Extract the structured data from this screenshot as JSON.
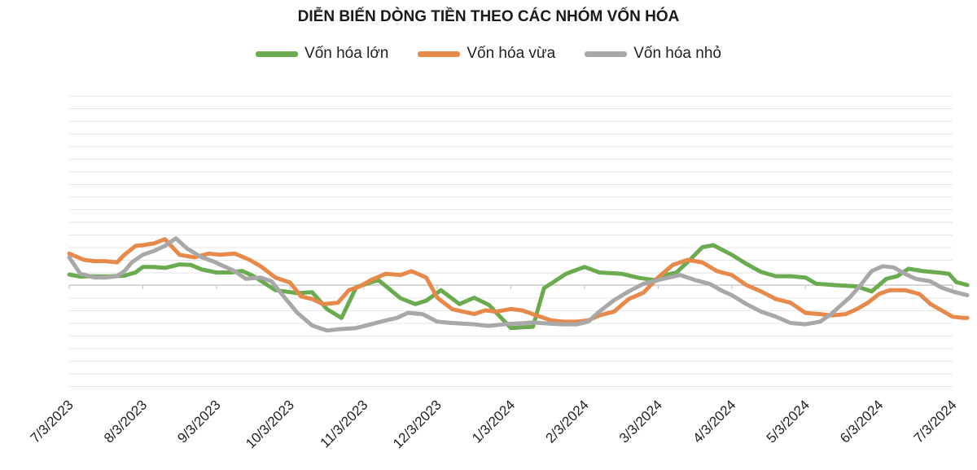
{
  "chart_data": {
    "type": "line",
    "title": "DIỄN BIẾN DÒNG TIỀN THEO CÁC NHÓM VỐN HÓA",
    "xlabel": "",
    "ylabel": "",
    "categories": [
      "7/3/2023",
      "8/3/2023",
      "9/3/2023",
      "10/3/2023",
      "11/3/2023",
      "12/3/2023",
      "1/3/2024",
      "2/3/2024",
      "3/3/2024",
      "4/3/2024",
      "5/3/2024",
      "6/3/2024",
      "7/3/2024"
    ],
    "legend_position": "top-center",
    "grid": true,
    "series": [
      {
        "name": "Vốn hóa lớn",
        "color": "#6aab4f",
        "values": [
          [
            0,
            0.42
          ],
          [
            0.15,
            0.34
          ],
          [
            0.3,
            0.35
          ],
          [
            0.5,
            0.34
          ],
          [
            0.75,
            0.37
          ],
          [
            0.9,
            0.5
          ],
          [
            1.0,
            0.72
          ],
          [
            1.15,
            0.72
          ],
          [
            1.3,
            0.68
          ],
          [
            1.5,
            0.82
          ],
          [
            1.65,
            0.8
          ],
          [
            1.8,
            0.62
          ],
          [
            2.0,
            0.5
          ],
          [
            2.2,
            0.5
          ],
          [
            2.35,
            0.56
          ],
          [
            2.5,
            0.36
          ],
          [
            2.8,
            -0.2
          ],
          [
            3.1,
            -0.32
          ],
          [
            3.3,
            -0.28
          ],
          [
            3.5,
            -0.95
          ],
          [
            3.7,
            -1.3
          ],
          [
            3.9,
            -0.08
          ],
          [
            4.2,
            0.2
          ],
          [
            4.5,
            -0.52
          ],
          [
            4.7,
            -0.75
          ],
          [
            4.85,
            -0.62
          ],
          [
            5.05,
            -0.2
          ],
          [
            5.3,
            -0.75
          ],
          [
            5.5,
            -0.5
          ],
          [
            5.7,
            -0.78
          ],
          [
            6.0,
            -1.7
          ],
          [
            6.3,
            -1.65
          ],
          [
            6.45,
            -0.12
          ],
          [
            6.6,
            0.16
          ],
          [
            6.75,
            0.45
          ],
          [
            7.0,
            0.72
          ],
          [
            7.2,
            0.5
          ],
          [
            7.5,
            0.45
          ],
          [
            7.75,
            0.28
          ],
          [
            7.95,
            0.2
          ],
          [
            8.1,
            0.4
          ],
          [
            8.25,
            0.5
          ],
          [
            8.45,
            1.05
          ],
          [
            8.6,
            1.5
          ],
          [
            8.75,
            1.58
          ],
          [
            9.0,
            1.2
          ],
          [
            9.2,
            0.84
          ],
          [
            9.4,
            0.52
          ],
          [
            9.6,
            0.35
          ],
          [
            9.8,
            0.35
          ],
          [
            10.0,
            0.3
          ],
          [
            10.15,
            0.05
          ],
          [
            10.4,
            0.0
          ],
          [
            10.7,
            -0.05
          ],
          [
            10.9,
            -0.25
          ],
          [
            11.1,
            0.25
          ],
          [
            11.25,
            0.35
          ],
          [
            11.4,
            0.65
          ],
          [
            11.6,
            0.55
          ],
          [
            11.8,
            0.5
          ],
          [
            11.95,
            0.45
          ],
          [
            12.05,
            0.12
          ],
          [
            12.2,
            0.0
          ]
        ]
      },
      {
        "name": "Vốn hóa vừa",
        "color": "#e6894a",
        "values": [
          [
            0,
            1.25
          ],
          [
            0.2,
            1.0
          ],
          [
            0.35,
            0.95
          ],
          [
            0.5,
            0.95
          ],
          [
            0.65,
            0.9
          ],
          [
            0.75,
            1.2
          ],
          [
            0.9,
            1.55
          ],
          [
            1.0,
            1.58
          ],
          [
            1.15,
            1.65
          ],
          [
            1.3,
            1.82
          ],
          [
            1.5,
            1.2
          ],
          [
            1.7,
            1.1
          ],
          [
            1.9,
            1.25
          ],
          [
            2.05,
            1.2
          ],
          [
            2.25,
            1.25
          ],
          [
            2.45,
            1.0
          ],
          [
            2.6,
            0.75
          ],
          [
            2.8,
            0.3
          ],
          [
            3.0,
            0.1
          ],
          [
            3.15,
            -0.45
          ],
          [
            3.3,
            -0.55
          ],
          [
            3.45,
            -0.75
          ],
          [
            3.65,
            -0.7
          ],
          [
            3.8,
            -0.2
          ],
          [
            3.95,
            -0.05
          ],
          [
            4.1,
            0.2
          ],
          [
            4.3,
            0.45
          ],
          [
            4.5,
            0.4
          ],
          [
            4.65,
            0.55
          ],
          [
            4.85,
            0.3
          ],
          [
            5.0,
            -0.5
          ],
          [
            5.2,
            -0.95
          ],
          [
            5.5,
            -1.15
          ],
          [
            5.65,
            -1.0
          ],
          [
            5.8,
            -1.05
          ],
          [
            6.0,
            -0.95
          ],
          [
            6.15,
            -1.0
          ],
          [
            6.35,
            -1.2
          ],
          [
            6.55,
            -1.4
          ],
          [
            6.7,
            -1.45
          ],
          [
            6.9,
            -1.45
          ],
          [
            7.05,
            -1.4
          ],
          [
            7.2,
            -1.2
          ],
          [
            7.4,
            -1.05
          ],
          [
            7.6,
            -0.55
          ],
          [
            7.8,
            -0.3
          ],
          [
            8.0,
            0.3
          ],
          [
            8.2,
            0.8
          ],
          [
            8.4,
            1.0
          ],
          [
            8.6,
            0.9
          ],
          [
            8.8,
            0.55
          ],
          [
            9.0,
            0.4
          ],
          [
            9.2,
            0.0
          ],
          [
            9.4,
            -0.25
          ],
          [
            9.6,
            -0.55
          ],
          [
            9.8,
            -0.7
          ],
          [
            10.0,
            -1.1
          ],
          [
            10.2,
            -1.15
          ],
          [
            10.35,
            -1.2
          ],
          [
            10.55,
            -1.15
          ],
          [
            10.7,
            -0.95
          ],
          [
            10.85,
            -0.7
          ],
          [
            11.0,
            -0.35
          ],
          [
            11.15,
            -0.2
          ],
          [
            11.35,
            -0.2
          ],
          [
            11.55,
            -0.35
          ],
          [
            11.7,
            -0.75
          ],
          [
            11.85,
            -1.0
          ],
          [
            12.0,
            -1.25
          ],
          [
            12.15,
            -1.3
          ],
          [
            12.2,
            -1.3
          ]
        ]
      },
      {
        "name": "Vốn hóa nhỏ",
        "color": "#a8a8a8",
        "values": [
          [
            0,
            1.1
          ],
          [
            0.15,
            0.45
          ],
          [
            0.35,
            0.3
          ],
          [
            0.5,
            0.3
          ],
          [
            0.65,
            0.35
          ],
          [
            0.75,
            0.55
          ],
          [
            0.85,
            0.9
          ],
          [
            1.0,
            1.2
          ],
          [
            1.15,
            1.35
          ],
          [
            1.3,
            1.55
          ],
          [
            1.45,
            1.85
          ],
          [
            1.6,
            1.45
          ],
          [
            1.8,
            1.1
          ],
          [
            1.95,
            0.95
          ],
          [
            2.1,
            0.75
          ],
          [
            2.25,
            0.55
          ],
          [
            2.4,
            0.25
          ],
          [
            2.6,
            0.3
          ],
          [
            2.75,
            0.15
          ],
          [
            2.9,
            -0.4
          ],
          [
            3.1,
            -1.1
          ],
          [
            3.3,
            -1.6
          ],
          [
            3.5,
            -1.8
          ],
          [
            3.65,
            -1.75
          ],
          [
            3.9,
            -1.7
          ],
          [
            4.1,
            -1.55
          ],
          [
            4.3,
            -1.4
          ],
          [
            4.45,
            -1.3
          ],
          [
            4.6,
            -1.1
          ],
          [
            4.8,
            -1.15
          ],
          [
            5.0,
            -1.45
          ],
          [
            5.2,
            -1.5
          ],
          [
            5.5,
            -1.55
          ],
          [
            5.7,
            -1.62
          ],
          [
            5.9,
            -1.55
          ],
          [
            6.1,
            -1.52
          ],
          [
            6.3,
            -1.48
          ],
          [
            6.5,
            -1.52
          ],
          [
            6.7,
            -1.55
          ],
          [
            6.9,
            -1.55
          ],
          [
            7.05,
            -1.45
          ],
          [
            7.2,
            -1.05
          ],
          [
            7.4,
            -0.6
          ],
          [
            7.6,
            -0.25
          ],
          [
            7.8,
            0.05
          ],
          [
            8.0,
            0.2
          ],
          [
            8.15,
            0.3
          ],
          [
            8.3,
            0.4
          ],
          [
            8.5,
            0.2
          ],
          [
            8.7,
            0.05
          ],
          [
            8.85,
            -0.2
          ],
          [
            9.0,
            -0.4
          ],
          [
            9.2,
            -0.75
          ],
          [
            9.4,
            -1.05
          ],
          [
            9.6,
            -1.25
          ],
          [
            9.8,
            -1.5
          ],
          [
            10.0,
            -1.55
          ],
          [
            10.2,
            -1.45
          ],
          [
            10.35,
            -1.15
          ],
          [
            10.5,
            -0.75
          ],
          [
            10.6,
            -0.5
          ],
          [
            10.75,
            0.0
          ],
          [
            10.9,
            0.55
          ],
          [
            11.05,
            0.75
          ],
          [
            11.2,
            0.7
          ],
          [
            11.35,
            0.45
          ],
          [
            11.5,
            0.25
          ],
          [
            11.7,
            0.15
          ],
          [
            11.85,
            -0.1
          ],
          [
            12.0,
            -0.25
          ],
          [
            12.2,
            -0.4
          ]
        ]
      }
    ]
  }
}
